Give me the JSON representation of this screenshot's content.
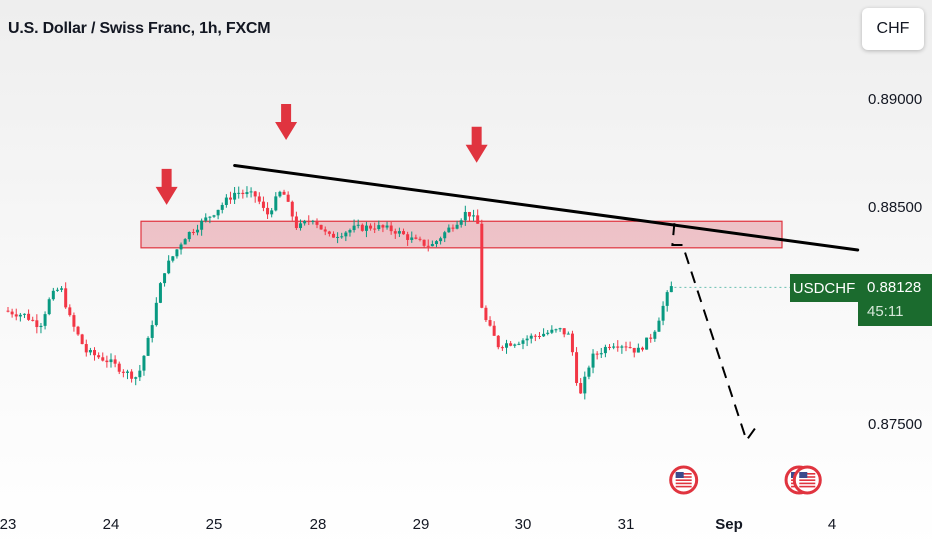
{
  "title": "U.S. Dollar / Swiss Franc, 1h, FXCM",
  "currency_button": "CHF",
  "symbol_label": "USDCHF",
  "last_price": "0.88128",
  "countdown": "45:11",
  "colors": {
    "up": "#089981",
    "down": "#f23645",
    "price_tag": "#1b6b2e",
    "zone_fill": "#e8a0a8",
    "zone_border": "#e0343f",
    "arrow": "#e0343f",
    "trendline": "#000000"
  },
  "chart_data": {
    "type": "candlestick",
    "title": "U.S. Dollar / Swiss Franc, 1h, FXCM",
    "x_ticks": [
      "23",
      "24",
      "25",
      "28",
      "29",
      "30",
      "31",
      "Sep",
      "4"
    ],
    "y_ticks": [
      "0.89000",
      "0.88500",
      "0.87500"
    ],
    "ylim": [
      0.873,
      0.8918
    ],
    "resistance_zone": [
      0.88311,
      0.88434
    ],
    "trendline": [
      {
        "x": 2.2,
        "y": 0.88692
      },
      {
        "x": 8.25,
        "y": 0.88301
      }
    ],
    "projection": [
      {
        "x": 6.47,
        "y": 0.88425
      },
      {
        "x": 6.45,
        "y": 0.88324
      },
      {
        "x": 6.55,
        "y": 0.88324
      },
      {
        "x": 7.17,
        "y": 0.8742
      },
      {
        "x": 7.29,
        "y": 0.875
      }
    ],
    "down_arrows": [
      {
        "x": 1.54,
        "y": 0.8851
      },
      {
        "x": 2.7,
        "y": 0.8881
      },
      {
        "x": 4.55,
        "y": 0.88705
      }
    ],
    "event_markers": [
      {
        "x": 6.56,
        "icon": "us-flag-icon"
      },
      {
        "x": 7.68,
        "icon": "us-flag-icon"
      },
      {
        "x": 7.76,
        "icon": "us-flag-icon"
      }
    ],
    "price_path": [
      {
        "x": 0.0,
        "y": 0.8802
      },
      {
        "x": 0.2,
        "y": 0.88
      },
      {
        "x": 0.35,
        "y": 0.8795
      },
      {
        "x": 0.45,
        "y": 0.8808
      },
      {
        "x": 0.55,
        "y": 0.8813
      },
      {
        "x": 0.65,
        "y": 0.8797
      },
      {
        "x": 0.8,
        "y": 0.8783
      },
      {
        "x": 1.0,
        "y": 0.8779
      },
      {
        "x": 1.2,
        "y": 0.8773
      },
      {
        "x": 1.3,
        "y": 0.8771
      },
      {
        "x": 1.4,
        "y": 0.8788
      },
      {
        "x": 1.55,
        "y": 0.882
      },
      {
        "x": 1.75,
        "y": 0.8836
      },
      {
        "x": 1.85,
        "y": 0.884
      },
      {
        "x": 2.05,
        "y": 0.8848
      },
      {
        "x": 2.25,
        "y": 0.8857
      },
      {
        "x": 2.45,
        "y": 0.8855
      },
      {
        "x": 2.55,
        "y": 0.8846
      },
      {
        "x": 2.7,
        "y": 0.8858
      },
      {
        "x": 2.85,
        "y": 0.884
      },
      {
        "x": 3.0,
        "y": 0.8845
      },
      {
        "x": 3.15,
        "y": 0.8836
      },
      {
        "x": 3.4,
        "y": 0.884
      },
      {
        "x": 3.6,
        "y": 0.8841
      },
      {
        "x": 3.8,
        "y": 0.8839
      },
      {
        "x": 4.0,
        "y": 0.8834
      },
      {
        "x": 4.15,
        "y": 0.8832
      },
      {
        "x": 4.3,
        "y": 0.8839
      },
      {
        "x": 4.5,
        "y": 0.8848
      },
      {
        "x": 4.6,
        "y": 0.8842
      },
      {
        "x": 4.62,
        "y": 0.8812
      },
      {
        "x": 4.65,
        "y": 0.88
      },
      {
        "x": 4.8,
        "y": 0.8786
      },
      {
        "x": 5.0,
        "y": 0.8788
      },
      {
        "x": 5.2,
        "y": 0.8791
      },
      {
        "x": 5.4,
        "y": 0.8793
      },
      {
        "x": 5.5,
        "y": 0.879
      },
      {
        "x": 5.55,
        "y": 0.8772
      },
      {
        "x": 5.6,
        "y": 0.8763
      },
      {
        "x": 5.7,
        "y": 0.878
      },
      {
        "x": 5.9,
        "y": 0.8787
      },
      {
        "x": 6.05,
        "y": 0.8786
      },
      {
        "x": 6.15,
        "y": 0.8783
      },
      {
        "x": 6.3,
        "y": 0.8791
      },
      {
        "x": 6.4,
        "y": 0.8804
      },
      {
        "x": 6.47,
        "y": 0.88128
      }
    ]
  }
}
